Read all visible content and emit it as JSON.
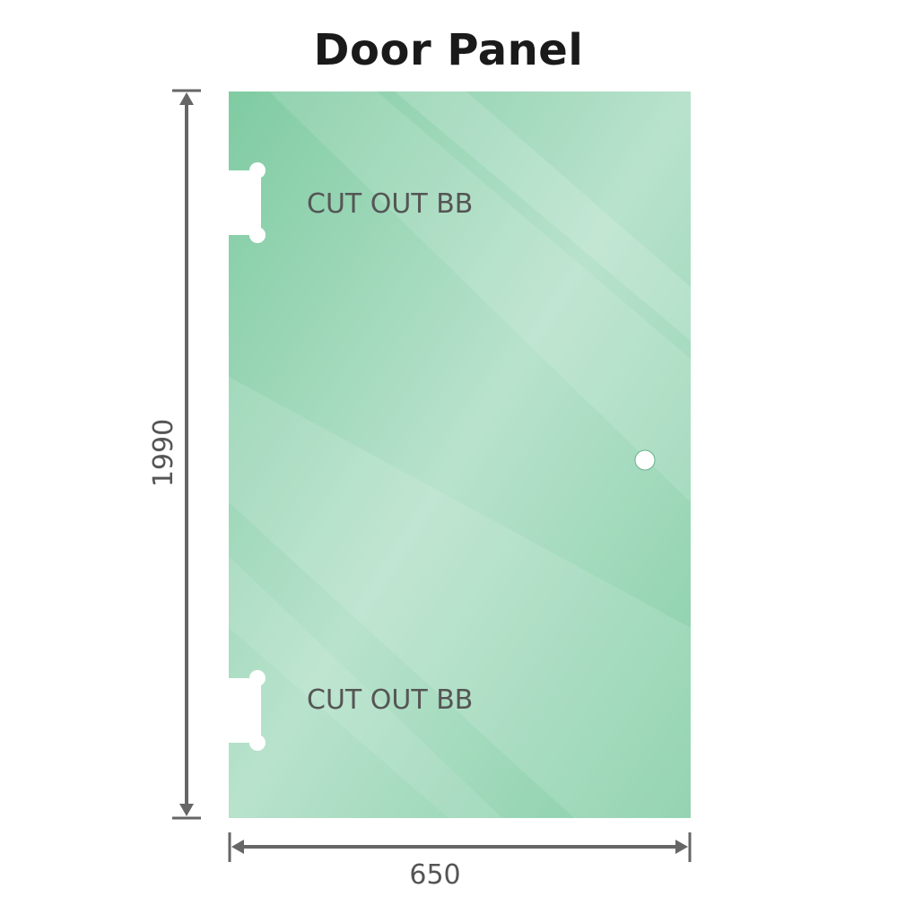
{
  "title": "Door Panel",
  "panel": {
    "cutout_labels": [
      "CUT OUT BB",
      "CUT OUT BB"
    ],
    "glass_color": "#86cfa8"
  },
  "dimensions": {
    "height": "1990",
    "width": "650"
  },
  "colors": {
    "dimension_line": "#666666",
    "text": "#555555"
  }
}
